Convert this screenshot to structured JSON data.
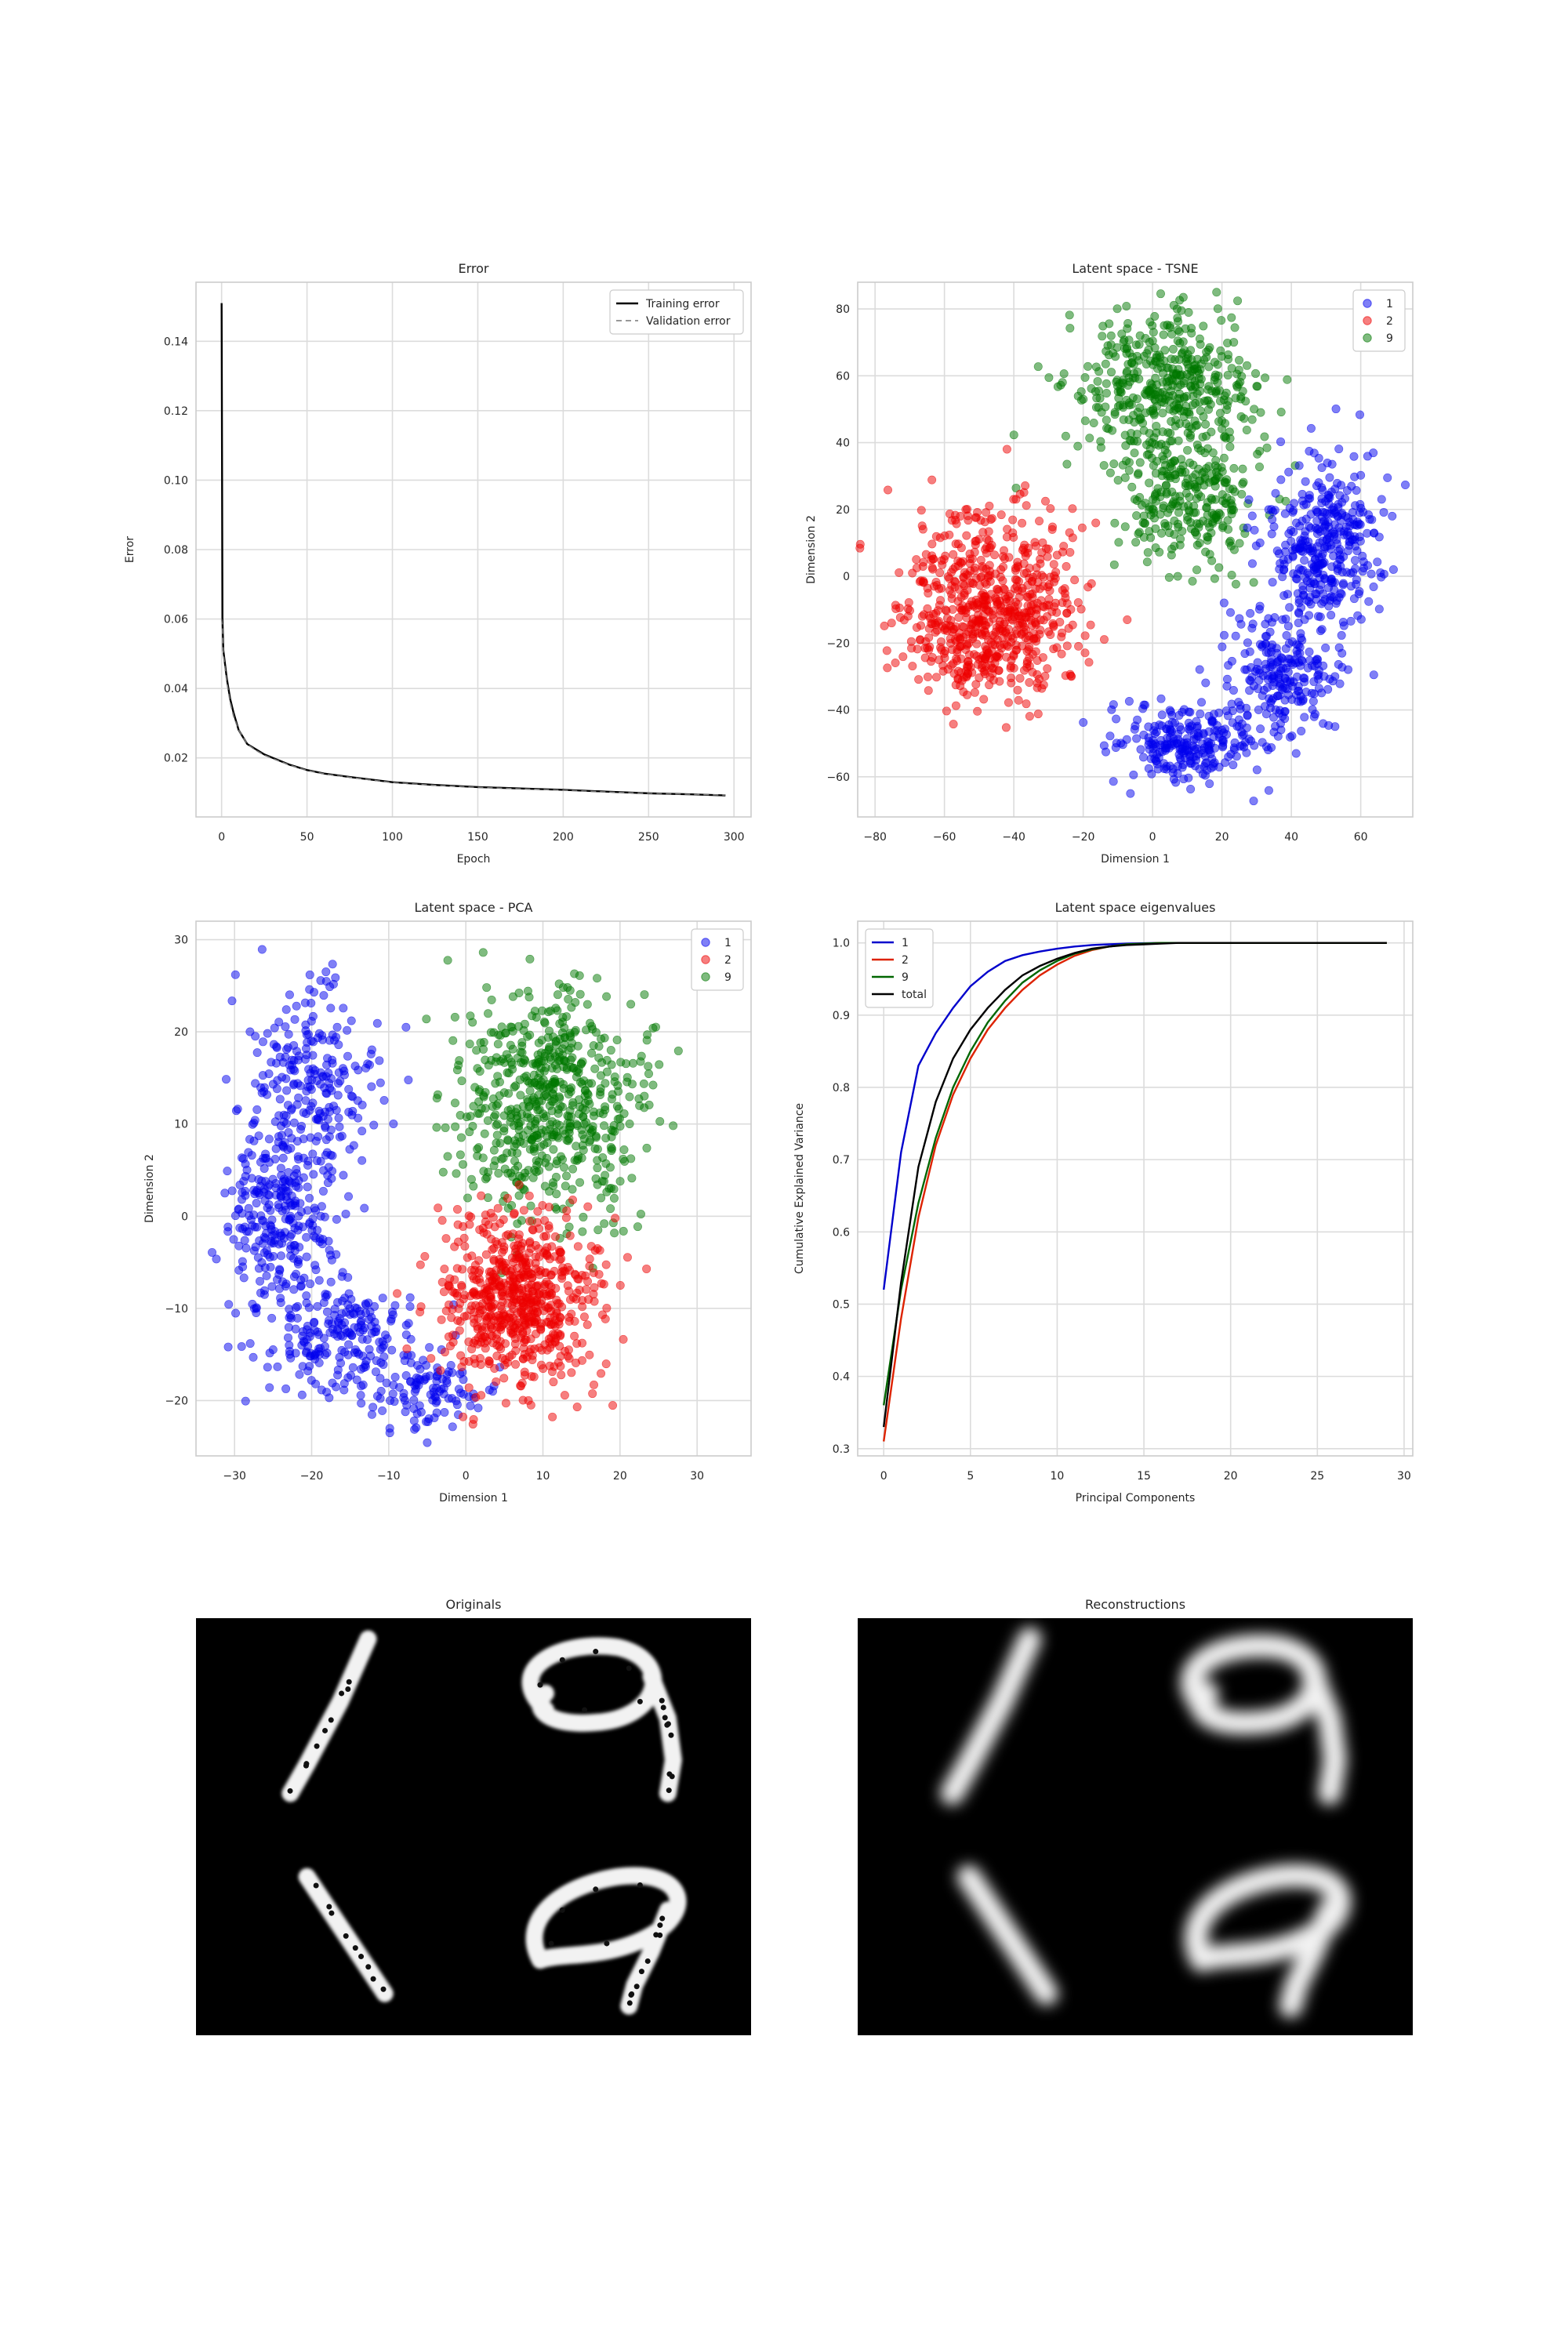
{
  "chart_data": [
    {
      "type": "line",
      "title": "Error",
      "xlabel": "Epoch",
      "ylabel": "Error",
      "xlim": [
        -15,
        310
      ],
      "ylim": [
        0.003,
        0.157
      ],
      "xticks": [
        "0",
        "50",
        "100",
        "150",
        "200",
        "250",
        "300"
      ],
      "yticks": [
        "0.02",
        "0.04",
        "0.06",
        "0.08",
        "0.10",
        "0.12",
        "0.14"
      ],
      "legend": "top-right",
      "grid": true,
      "series": [
        {
          "name": "Training error",
          "color": "#000000",
          "style": "solid",
          "x": [
            0,
            0.5,
            1,
            2,
            3,
            4,
            5,
            7,
            10,
            15,
            20,
            25,
            30,
            40,
            50,
            60,
            75,
            100,
            125,
            150,
            175,
            200,
            225,
            250,
            275,
            295
          ],
          "y": [
            0.151,
            0.06,
            0.051,
            0.047,
            0.043,
            0.04,
            0.037,
            0.033,
            0.028,
            0.024,
            0.0225,
            0.021,
            0.02,
            0.018,
            0.0165,
            0.0155,
            0.0145,
            0.013,
            0.0122,
            0.0116,
            0.0112,
            0.0108,
            0.0103,
            0.0098,
            0.0095,
            0.0092
          ]
        },
        {
          "name": "Validation error",
          "color": "#777777",
          "style": "dashed",
          "x": [
            0,
            0.5,
            1,
            2,
            3,
            4,
            5,
            7,
            10,
            15,
            20,
            25,
            30,
            40,
            50,
            60,
            75,
            100,
            125,
            150,
            175,
            200,
            225,
            250,
            275,
            295
          ],
          "y": [
            0.06,
            0.058,
            0.05,
            0.046,
            0.042,
            0.039,
            0.036,
            0.032,
            0.028,
            0.024,
            0.0222,
            0.0208,
            0.0198,
            0.0179,
            0.0164,
            0.0154,
            0.0144,
            0.0129,
            0.0121,
            0.0115,
            0.0111,
            0.0107,
            0.0102,
            0.0098,
            0.0095,
            0.0093
          ]
        }
      ]
    },
    {
      "type": "scatter",
      "title": "Latent space - TSNE",
      "xlabel": "Dimension 1",
      "ylabel": "Dimension 2",
      "xlim": [
        -85,
        75
      ],
      "ylim": [
        -72,
        88
      ],
      "xticks": [
        "−80",
        "−60",
        "−40",
        "−20",
        "0",
        "20",
        "40",
        "60"
      ],
      "yticks": [
        "−60",
        "−40",
        "−20",
        "0",
        "20",
        "40",
        "60",
        "80"
      ],
      "legend": "top-right",
      "grid": true,
      "series": [
        {
          "name": "1",
          "color": "#0000ee"
        },
        {
          "name": "2",
          "color": "#ee0000"
        },
        {
          "name": "9",
          "color": "#007700"
        }
      ],
      "clusters": [
        {
          "series": "9",
          "cx": 3,
          "cy": 56,
          "sx": 13,
          "sy": 11,
          "n": 450
        },
        {
          "series": "9",
          "cx": 10,
          "cy": 22,
          "sx": 10,
          "sy": 10,
          "n": 260
        },
        {
          "series": "2",
          "cx": -47,
          "cy": -10,
          "sx": 13,
          "sy": 14,
          "n": 700
        },
        {
          "series": "1",
          "cx": 50,
          "cy": 10,
          "sx": 8,
          "sy": 12,
          "n": 360
        },
        {
          "series": "1",
          "cx": 37,
          "cy": -28,
          "sx": 8,
          "sy": 10,
          "n": 220
        },
        {
          "series": "1",
          "cx": 10,
          "cy": -50,
          "sx": 11,
          "sy": 6,
          "n": 260
        }
      ]
    },
    {
      "type": "scatter",
      "title": "Latent space - PCA",
      "xlabel": "Dimension 1",
      "ylabel": "Dimension 2",
      "xlim": [
        -35,
        37
      ],
      "ylim": [
        -26,
        32
      ],
      "xticks": [
        "−30",
        "−20",
        "−10",
        "0",
        "10",
        "20",
        "30"
      ],
      "yticks": [
        "−20",
        "−10",
        "0",
        "10",
        "20",
        "30"
      ],
      "legend": "top-right",
      "grid": true,
      "series": [
        {
          "name": "1",
          "color": "#0000ee"
        },
        {
          "name": "2",
          "color": "#ee0000"
        },
        {
          "name": "9",
          "color": "#007700"
        }
      ],
      "clusters": [
        {
          "series": "1",
          "cx": -20,
          "cy": 15,
          "sx": 4,
          "sy": 5,
          "n": 230
        },
        {
          "series": "1",
          "cx": -24,
          "cy": 0,
          "sx": 3.5,
          "sy": 5,
          "n": 280
        },
        {
          "series": "1",
          "cx": -16,
          "cy": -13,
          "sx": 5,
          "sy": 3,
          "n": 200
        },
        {
          "series": "1",
          "cx": -5,
          "cy": -19,
          "sx": 4,
          "sy": 2,
          "n": 110
        },
        {
          "series": "9",
          "cx": 11,
          "cy": 12,
          "sx": 6,
          "sy": 6,
          "n": 620
        },
        {
          "series": "2",
          "cx": 7,
          "cy": -9,
          "sx": 5,
          "sy": 4.5,
          "n": 650
        }
      ]
    },
    {
      "type": "line",
      "title": "Latent space eigenvalues",
      "xlabel": "Principal Components",
      "ylabel": "Cumulative Explained Variance",
      "xlim": [
        -1.5,
        30.5
      ],
      "ylim": [
        0.29,
        1.03
      ],
      "xticks": [
        "0",
        "5",
        "10",
        "15",
        "20",
        "25",
        "30"
      ],
      "yticks": [
        "0.3",
        "0.4",
        "0.5",
        "0.6",
        "0.7",
        "0.8",
        "0.9",
        "1.0"
      ],
      "legend": "top-left",
      "grid": true,
      "x": [
        0,
        1,
        2,
        3,
        4,
        5,
        6,
        7,
        8,
        9,
        10,
        11,
        12,
        13,
        14,
        15,
        16,
        17,
        18,
        19,
        20,
        21,
        22,
        23,
        24,
        25,
        26,
        27,
        28,
        29
      ],
      "series": [
        {
          "name": "1",
          "color": "#0000cc",
          "values": [
            0.52,
            0.71,
            0.83,
            0.875,
            0.91,
            0.94,
            0.96,
            0.975,
            0.983,
            0.988,
            0.992,
            0.995,
            0.997,
            0.998,
            0.999,
            0.9995,
            1,
            1,
            1,
            1,
            1,
            1,
            1,
            1,
            1,
            1,
            1,
            1,
            1,
            1
          ]
        },
        {
          "name": "2",
          "color": "#dd2200",
          "values": [
            0.31,
            0.48,
            0.62,
            0.72,
            0.79,
            0.84,
            0.88,
            0.91,
            0.935,
            0.955,
            0.97,
            0.982,
            0.99,
            0.995,
            0.998,
            0.999,
            1,
            1,
            1,
            1,
            1,
            1,
            1,
            1,
            1,
            1,
            1,
            1,
            1,
            1
          ]
        },
        {
          "name": "9",
          "color": "#006600",
          "values": [
            0.36,
            0.52,
            0.64,
            0.73,
            0.8,
            0.85,
            0.89,
            0.92,
            0.945,
            0.962,
            0.975,
            0.985,
            0.991,
            0.995,
            0.998,
            0.999,
            1,
            1,
            1,
            1,
            1,
            1,
            1,
            1,
            1,
            1,
            1,
            1,
            1,
            1
          ]
        },
        {
          "name": "total",
          "color": "#000000",
          "values": [
            0.33,
            0.53,
            0.69,
            0.78,
            0.84,
            0.88,
            0.91,
            0.935,
            0.955,
            0.968,
            0.978,
            0.986,
            0.992,
            0.995,
            0.997,
            0.998,
            0.999,
            1,
            1,
            1,
            1,
            1,
            1,
            1,
            1,
            1,
            1,
            1,
            1,
            1
          ]
        }
      ]
    }
  ],
  "images": [
    {
      "title": "Originals",
      "digits": [
        "1",
        "9",
        "1",
        "9"
      ],
      "style": "dotted"
    },
    {
      "title": "Reconstructions",
      "digits": [
        "1",
        "9",
        "1",
        "9"
      ],
      "style": "blurred"
    }
  ]
}
